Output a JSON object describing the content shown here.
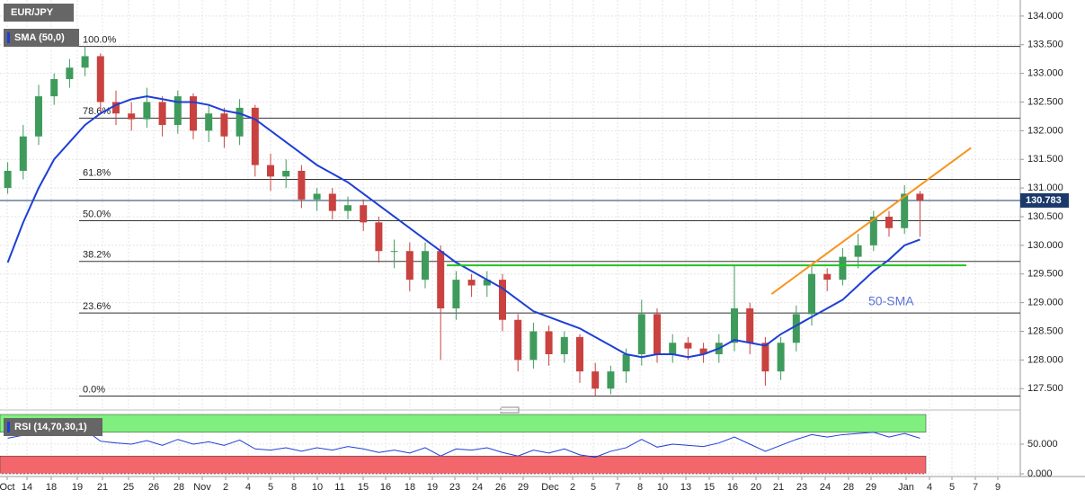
{
  "chart_data": {
    "type": "candlestick",
    "title": "EUR/JPY",
    "up_color": "#3f9b5c",
    "down_color": "#c9423f",
    "ylim": [
      127.19,
      134.28
    ],
    "yticks": [
      {
        "value": 134.0,
        "label": "134.000"
      },
      {
        "value": 133.5,
        "label": "133.500"
      },
      {
        "value": 133.0,
        "label": "133.000"
      },
      {
        "value": 132.5,
        "label": "132.500"
      },
      {
        "value": 132.0,
        "label": "132.000"
      },
      {
        "value": 131.5,
        "label": "131.500"
      },
      {
        "value": 131.0,
        "label": "131.000"
      },
      {
        "value": 130.5,
        "label": "130.500"
      },
      {
        "value": 130.0,
        "label": "130.000"
      },
      {
        "value": 129.5,
        "label": "129.500"
      },
      {
        "value": 129.0,
        "label": "129.000"
      },
      {
        "value": 128.5,
        "label": "128.500"
      },
      {
        "value": 128.0,
        "label": "128.000"
      },
      {
        "value": 127.5,
        "label": "127.500"
      }
    ],
    "grid": true,
    "xaxis_labels": [
      "Oct",
      "14",
      "18",
      "19",
      "21",
      "25",
      "26",
      "28",
      "Nov",
      "2",
      "4",
      "5",
      "8",
      "10",
      "11",
      "15",
      "16",
      "18",
      "19",
      "23",
      "24",
      "26",
      "29",
      "Dec",
      "2",
      "5",
      "7",
      "8",
      "10",
      "13",
      "15",
      "16",
      "20",
      "21",
      "23",
      "24",
      "28",
      "29",
      "Jan",
      "4",
      "5",
      "7",
      "9"
    ],
    "open": [
      131.0,
      131.3,
      131.9,
      132.6,
      132.9,
      133.1,
      133.3,
      132.5,
      132.3,
      132.2,
      132.5,
      132.1,
      132.6,
      132.0,
      132.3,
      131.9,
      132.4,
      131.4,
      131.2,
      131.3,
      130.8,
      130.9,
      130.6,
      130.7,
      130.4,
      129.9,
      129.9,
      129.4,
      129.9,
      128.9,
      129.4,
      129.3,
      129.4,
      128.7,
      128.0,
      128.5,
      128.1,
      128.4,
      127.8,
      127.5,
      127.8,
      128.1,
      128.8,
      128.1,
      128.3,
      128.2,
      128.1,
      128.3,
      128.9,
      128.3,
      127.8,
      128.3,
      128.8,
      129.5,
      129.4,
      129.8,
      130.0,
      130.5,
      130.3,
      130.9
    ],
    "high": [
      131.45,
      132.1,
      132.8,
      133.0,
      133.25,
      133.47,
      133.35,
      132.7,
      132.5,
      132.75,
      132.6,
      132.7,
      132.65,
      132.45,
      132.4,
      132.55,
      132.45,
      131.6,
      131.5,
      131.4,
      131.0,
      131.0,
      130.85,
      130.8,
      130.5,
      130.1,
      130.05,
      130.05,
      130.0,
      129.55,
      129.5,
      129.55,
      129.5,
      128.8,
      128.65,
      128.6,
      128.5,
      128.45,
      127.95,
      127.9,
      128.2,
      129.05,
      128.9,
      128.45,
      128.4,
      128.3,
      128.45,
      129.65,
      129.0,
      128.4,
      128.4,
      128.95,
      129.65,
      129.6,
      129.95,
      130.2,
      130.6,
      130.6,
      131.05,
      130.95
    ],
    "low": [
      130.9,
      131.15,
      131.75,
      132.45,
      132.75,
      132.95,
      132.3,
      132.1,
      132.0,
      132.05,
      131.9,
      131.95,
      131.85,
      131.8,
      131.7,
      131.75,
      131.2,
      130.95,
      131.0,
      130.65,
      130.6,
      130.45,
      130.45,
      130.25,
      129.7,
      129.6,
      129.2,
      129.25,
      128.0,
      128.7,
      129.1,
      129.1,
      128.5,
      127.8,
      127.85,
      127.9,
      127.95,
      127.6,
      127.37,
      127.4,
      127.6,
      127.9,
      127.95,
      127.95,
      128.0,
      127.95,
      127.95,
      128.15,
      128.1,
      127.55,
      127.65,
      128.15,
      128.6,
      129.2,
      129.3,
      129.6,
      129.9,
      130.15,
      130.2,
      130.15
    ],
    "close": [
      131.3,
      131.9,
      132.6,
      132.9,
      133.1,
      133.3,
      132.5,
      132.3,
      132.2,
      132.5,
      132.1,
      132.6,
      132.0,
      132.3,
      131.9,
      132.4,
      131.4,
      131.2,
      131.3,
      130.8,
      130.9,
      130.6,
      130.7,
      130.4,
      129.9,
      129.9,
      129.4,
      129.9,
      128.9,
      129.4,
      129.3,
      129.4,
      128.7,
      128.0,
      128.5,
      128.1,
      128.4,
      127.8,
      127.5,
      127.8,
      128.1,
      128.8,
      128.1,
      128.3,
      128.2,
      128.1,
      128.3,
      128.9,
      128.3,
      127.8,
      128.3,
      128.8,
      129.5,
      129.4,
      129.8,
      130.0,
      130.5,
      130.3,
      130.9,
      130.783
    ],
    "sma": {
      "name": "SMA (50,0)",
      "color": "#1e3fd6",
      "values": [
        129.7,
        130.4,
        131.0,
        131.5,
        131.8,
        132.1,
        132.3,
        132.45,
        132.55,
        132.6,
        132.55,
        132.5,
        132.5,
        132.45,
        132.35,
        132.3,
        132.2,
        132.0,
        131.8,
        131.6,
        131.4,
        131.25,
        131.1,
        130.9,
        130.7,
        130.5,
        130.3,
        130.1,
        129.9,
        129.7,
        129.55,
        129.4,
        129.25,
        129.05,
        128.85,
        128.75,
        128.65,
        128.55,
        128.4,
        128.25,
        128.1,
        128.05,
        128.1,
        128.1,
        128.05,
        128.1,
        128.2,
        128.35,
        128.3,
        128.25,
        128.45,
        128.6,
        128.75,
        128.9,
        129.05,
        129.3,
        129.55,
        129.75,
        130.0,
        130.1
      ]
    },
    "sma_annotation": "50-SMA",
    "fib_levels": [
      {
        "label": "100.0%",
        "value": 133.47
      },
      {
        "label": "78.6%",
        "value": 132.22
      },
      {
        "label": "61.8%",
        "value": 131.15
      },
      {
        "label": "50.0%",
        "value": 130.43
      },
      {
        "label": "38.2%",
        "value": 129.72
      },
      {
        "label": "23.6%",
        "value": 128.82
      },
      {
        "label": "0.0%",
        "value": 127.37
      }
    ],
    "last_price": 130.783,
    "support_line": {
      "color": "#22c322",
      "points": [
        {
          "x": 28.4,
          "y": 129.65
        },
        {
          "x": 62.0,
          "y": 129.65
        }
      ]
    },
    "trend_line": {
      "color": "#f7941d",
      "points": [
        {
          "x": 49.4,
          "y": 129.15
        },
        {
          "x": 62.3,
          "y": 131.7
        }
      ]
    },
    "rsi": {
      "name": "RSI (14,70,30,1)",
      "color": "#1e3fd6",
      "ylim": [
        0,
        100
      ],
      "yticks": [
        {
          "value": 50,
          "label": "50.000"
        },
        {
          "value": 0,
          "label": "0.000"
        }
      ],
      "overbought": 70,
      "oversold": 30,
      "values": [
        60,
        65,
        70,
        72,
        73,
        74,
        55,
        52,
        50,
        56,
        48,
        58,
        50,
        54,
        48,
        57,
        42,
        40,
        44,
        38,
        44,
        40,
        46,
        42,
        36,
        40,
        35,
        44,
        30,
        42,
        40,
        44,
        36,
        30,
        40,
        35,
        42,
        32,
        28,
        38,
        44,
        58,
        45,
        50,
        48,
        46,
        52,
        62,
        50,
        38,
        48,
        58,
        66,
        62,
        66,
        68,
        70,
        62,
        68,
        60
      ]
    }
  }
}
